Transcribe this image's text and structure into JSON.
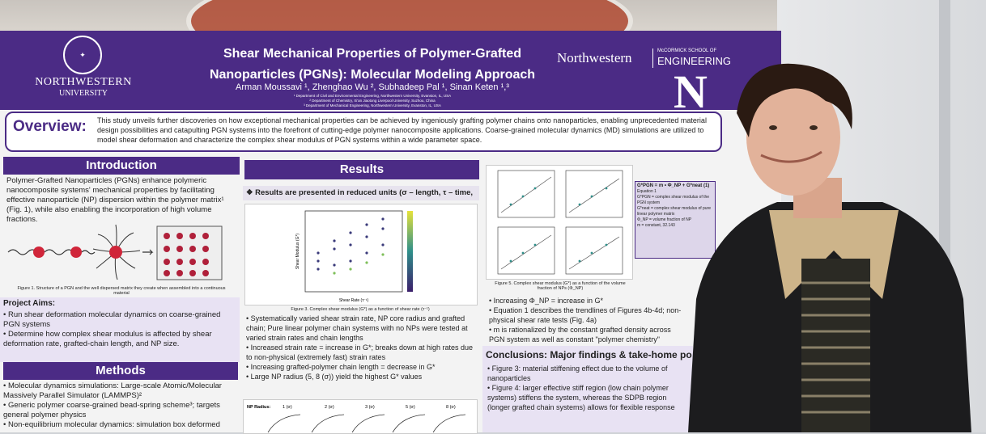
{
  "header": {
    "university_name": "NORTHWESTERN",
    "university_sub": "UNIVERSITY",
    "title_line1": "Shear Mechanical Properties of Polymer-Grafted",
    "title_line2": "Nanoparticles (PGNs): Molecular Modeling Approach",
    "authors": "Arman Moussavi ¹, Zhenghao Wu ², Subhadeep Pal ¹, Sinan Keten ¹,³",
    "affiliations": [
      "¹ Department of Civil and Environmental Engineering, Northwestern University, Evanston, IL, USA",
      "² Department of Chemistry, Xi'an Jiaotong Liverpool University, Suzhou, China",
      "³ Department of Mechanical Engineering, Northwestern University, Evanston, IL, USA"
    ],
    "mccormick_name": "Northwestern",
    "mccormick_school": "McCORMICK SCHOOL OF",
    "mccormick_eng": "ENGINEERING",
    "logo_letter": "N"
  },
  "overview": {
    "label": "Overview:",
    "text": "This study unveils further discoveries on how exceptional mechanical properties can be achieved by ingeniously grafting polymer chains onto nanoparticles, enabling unprecedented material design possibilities and catapulting PGN systems into the forefront of cutting-edge polymer nanocomposite applications. Coarse-grained molecular dynamics (MD) simulations are utilized to model shear deformation and characterize the complex shear modulus of PGN systems within a wide parameter space."
  },
  "introduction": {
    "heading": "Introduction",
    "text": "Polymer-Grafted Nanoparticles (PGNs) enhance polymeric nanocomposite systems' mechanical properties by facilitating effective nanoparticle (NP) dispersion within the polymer matrix¹ (Fig. 1), while also enabling the incorporation of high volume fractions.",
    "fig1_caption": "Figure 1. Structure of a PGN and the well dispersed matrix they create when assembled into a continuous material"
  },
  "aims": {
    "title": "Project Aims:",
    "items": [
      "Run shear deformation molecular dynamics on coarse-grained PGN systems",
      "Determine how complex shear modulus is affected by shear deformation rate, grafted-chain length, and NP size."
    ]
  },
  "methods": {
    "heading": "Methods",
    "items": [
      "Molecular dynamics simulations: Large-scale Atomic/Molecular Massively Parallel Simulator (LAMMPS)²",
      "Generic polymer coarse-grained bead-spring scheme³; targets general polymer physics",
      "Non-equilibrium molecular dynamics: simulation box deformed"
    ]
  },
  "results": {
    "heading": "Results",
    "note": "❖ Results are presented in reduced units (σ – length, τ – time, etc.)",
    "fig3_caption": "Figure 3. Complex shear modulus (G*) as a function of shear rate (τ⁻¹)",
    "fig3_xlabel": "Shear Rate (τ⁻¹)",
    "fig3_ylabel": "Shear Modulus (G*)",
    "items": [
      "Systematically varied shear strain rate, NP core radius and grafted chain; Pure linear polymer chain systems with no NPs were tested at varied strain rates and chain lengths",
      "Increased strain rate = increase in G*; breaks down at high rates due to non-physical (extremely fast) strain rates",
      "Increasing grafted-polymer chain length = decrease in G*",
      "Large NP radius (5, 8 (σ)) yield the highest G* values"
    ],
    "fig6_label": "NP Radius:",
    "fig6_radii": [
      "1 (σ)",
      "2 (σ)",
      "3 (σ)",
      "5 (σ)",
      "8 (σ)"
    ]
  },
  "results2": {
    "fig5_caption": "Figure 5. Complex shear modulus (G*) as a function of the volume fraction of NPs (Φ_NP)",
    "equation": "G*PGN = m • Φ_NP + G*neat  (1)",
    "equation_label": "Equation 1",
    "equation_defs": [
      "G*PGN = complex shear modulus of the PGN system",
      "G*neat = complex shear modulus of pure linear polymer matrix",
      "Φ_NP = volume fraction of NP",
      "m = constant, 32.143"
    ],
    "items": [
      "Increasing Φ_NP = increase in G*",
      "Equation 1 describes the trendlines of Figures 4b-4d; non-physical shear rate tests (Fig. 4a)",
      "m is rationalized by the constant grafted density across PGN system as well as constant \"polymer chemistry\""
    ]
  },
  "conclusions": {
    "title": "Conclusions:  Major findings & take-home po",
    "items": [
      "Figure 3: material stiffening effect due to the volume of nanoparticles",
      "Figure 4: larger effective stiff region (low chain polymer systems) stiffens the system, whereas the SDPB region (longer grafted chain systems) allows for flexible response"
    ]
  },
  "colors": {
    "purple": "#4b2b85",
    "lavender": "#e8e2f3",
    "np_red": "#d0263a"
  }
}
